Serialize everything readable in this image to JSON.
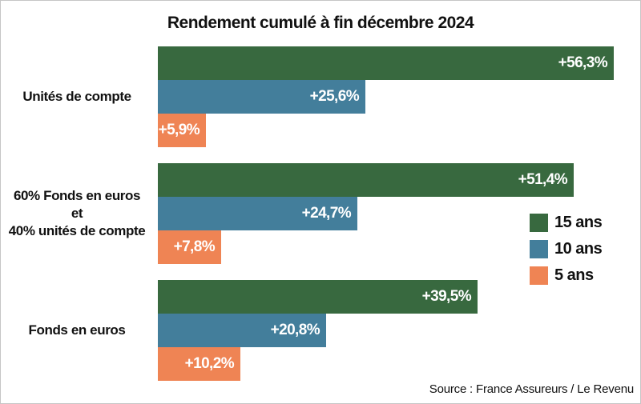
{
  "title": "Rendement cumulé à fin décembre 2024",
  "source": "Source : France Assureurs / Le Revenu",
  "colors": {
    "green_15_ans": "#38693f",
    "blue_10_ans": "#437e9b",
    "orange_5_ans": "#ef8454",
    "text": "#111111",
    "value_text": "#ffffff",
    "border": "#c6c6c6"
  },
  "legend": [
    {
      "label": "15 ans",
      "color": "#38693f"
    },
    {
      "label": "10 ans",
      "color": "#437e9b"
    },
    {
      "label": "5 ans",
      "color": "#ef8454"
    }
  ],
  "chart_data": {
    "type": "bar",
    "orientation": "horizontal",
    "title": "Rendement cumulé à fin décembre 2024",
    "unit": "%",
    "grid": false,
    "legend_position": "right-middle",
    "xlim": [
      0,
      58
    ],
    "categories": [
      {
        "name": "Unités de compte",
        "lines": [
          "Unités de compte"
        ]
      },
      {
        "name": "60% Fonds en euros et 40% unités de compte",
        "lines": [
          "60% Fonds en euros",
          "et",
          "40% unités de compte"
        ]
      },
      {
        "name": "Fonds en euros",
        "lines": [
          "Fonds en euros"
        ]
      }
    ],
    "series": [
      {
        "name": "15 ans",
        "color": "#38693f",
        "values": [
          56.3,
          51.4,
          39.5
        ],
        "labels": [
          "+56,3%",
          "+51,4%",
          "+39,5%"
        ]
      },
      {
        "name": "10 ans",
        "color": "#437e9b",
        "values": [
          25.6,
          24.7,
          20.8
        ],
        "labels": [
          "+25,6%",
          "+24,7%",
          "+20,8%"
        ]
      },
      {
        "name": "5 ans",
        "color": "#ef8454",
        "values": [
          5.9,
          7.8,
          10.2
        ],
        "labels": [
          "+5,9%",
          "+7,8%",
          "+10,2%"
        ]
      }
    ]
  }
}
